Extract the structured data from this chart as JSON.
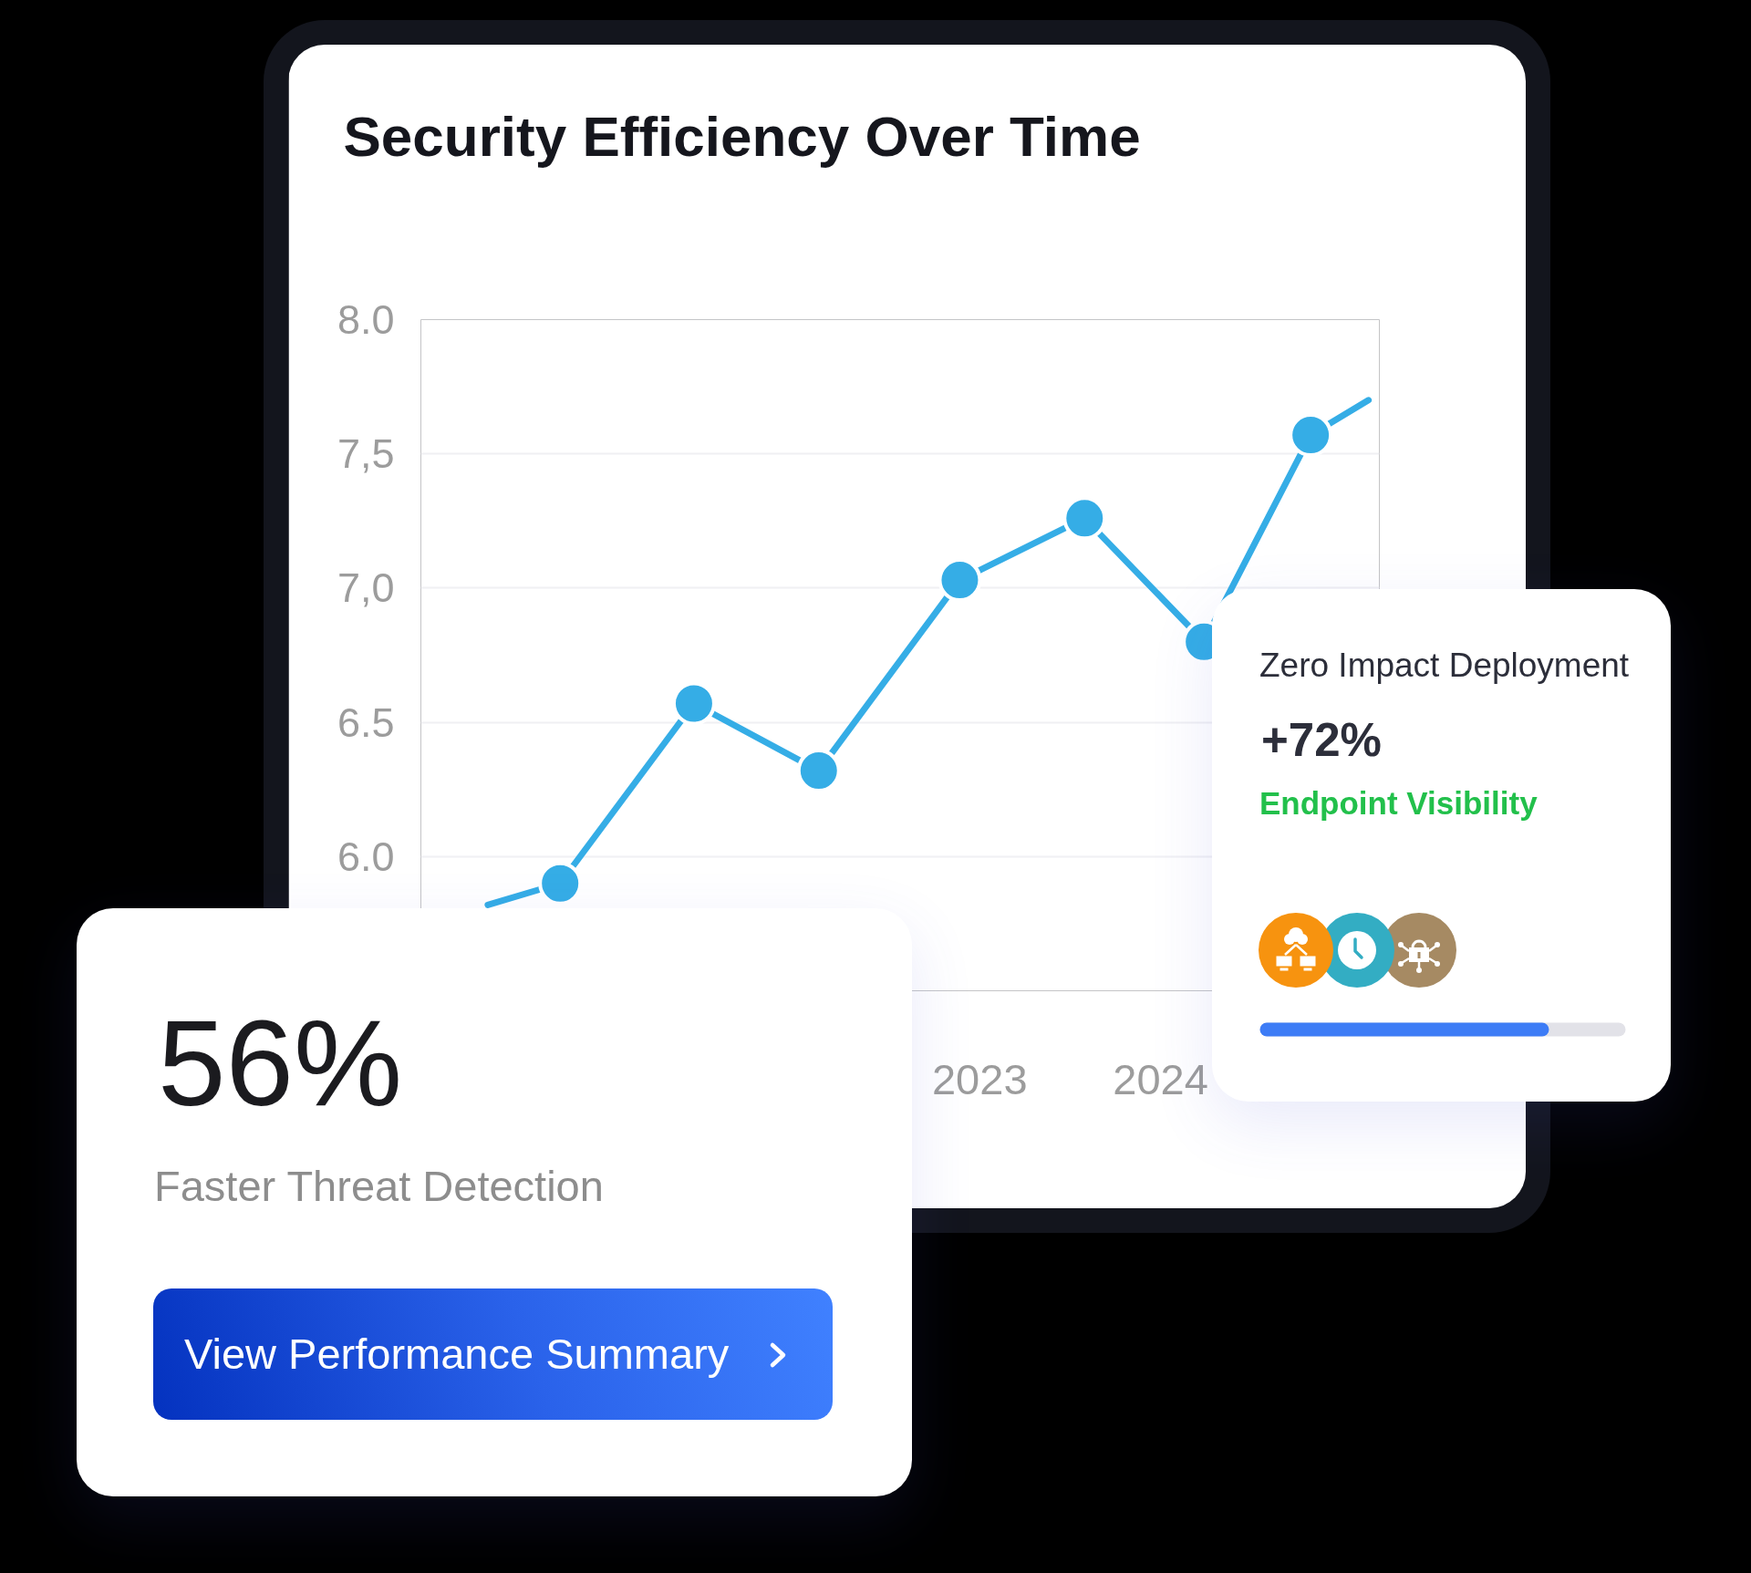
{
  "chart_data": [
    {
      "type": "line",
      "title": "Security Efficiency Over Time",
      "x": [
        2020.28,
        2020.68,
        2021.42,
        2022.11,
        2022.89,
        2023.58,
        2024.24,
        2024.83,
        2025.15
      ],
      "series": [
        {
          "color": "#35ade6",
          "values": [
            5.82,
            5.9,
            6.57,
            6.32,
            7.03,
            7.26,
            6.8,
            7.57,
            7.7
          ]
        },
        {
          "type": "scatter",
          "color": "#35ade6",
          "marker": "circle",
          "x": [
            2020.68,
            2021.42,
            2022.11,
            2022.89,
            2023.58,
            2024.24,
            2024.83
          ],
          "values": [
            5.9,
            6.57,
            6.32,
            7.03,
            7.26,
            6.8,
            7.57
          ]
        }
      ],
      "xlim": [
        2019.91,
        2025.21
      ],
      "ylim": [
        5.5,
        8.0
      ],
      "xticks": [
        2023,
        2024
      ],
      "yticks": [
        {
          "value": 5.5,
          "label": null
        },
        {
          "value": 6.0,
          "label": "6.0"
        },
        6.5,
        {
          "value": 7.0,
          "label": "7,0"
        },
        {
          "value": 7.5,
          "label": "7,5"
        },
        {
          "value": 8.0,
          "label": "8.0"
        }
      ],
      "grid": "y"
    },
    {
      "type": "other",
      "annotations": [
        "56%",
        "Faster Threat Detection",
        "View Performance Summary"
      ]
    },
    {
      "type": "other",
      "annotations": [
        "Zero Impact Deployment",
        "+72%",
        "Endpoint Visibility"
      ]
    }
  ]
}
